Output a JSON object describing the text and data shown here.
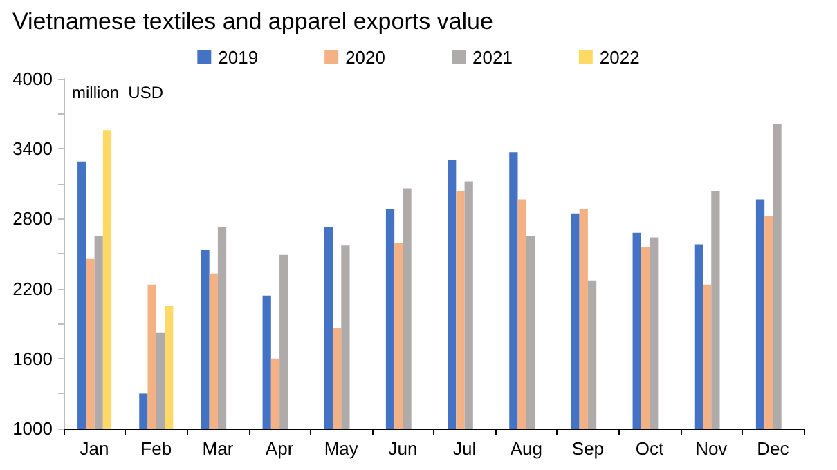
{
  "chart_data": {
    "type": "bar",
    "title": "Vietnamese textiles and apparel exports value",
    "ylabel": "million  USD",
    "categories": [
      "Jan",
      "Feb",
      "Mar",
      "Apr",
      "May",
      "Jun",
      "Jul",
      "Aug",
      "Sep",
      "Oct",
      "Nov",
      "Dec"
    ],
    "series": [
      {
        "name": "2019",
        "color": "#4472c4",
        "values": [
          3290,
          1300,
          2530,
          2140,
          2725,
          2880,
          3300,
          3370,
          2845,
          2680,
          2580,
          2965
        ]
      },
      {
        "name": "2020",
        "color": "#f4b183",
        "values": [
          2460,
          2235,
          2330,
          1600,
          1865,
          2595,
          3035,
          2965,
          2880,
          2560,
          2235,
          2820
        ]
      },
      {
        "name": "2021",
        "color": "#afabab",
        "values": [
          2650,
          1820,
          2725,
          2490,
          2570,
          3060,
          3120,
          2650,
          2270,
          2640,
          3035,
          3610
        ]
      },
      {
        "name": "2022",
        "color": "#ffd966",
        "values": [
          3560,
          2055,
          null,
          null,
          null,
          null,
          null,
          null,
          null,
          null,
          null,
          null
        ]
      }
    ],
    "ylim": [
      1000,
      4000
    ],
    "yticks": [
      1000,
      {
        "value": 1300,
        "label": null
      },
      1600,
      {
        "value": 1900,
        "label": null
      },
      2200,
      {
        "value": 2500,
        "label": null
      },
      2800,
      {
        "value": 3100,
        "label": null
      },
      3400,
      {
        "value": 3700,
        "label": null
      },
      4000
    ],
    "grid": false,
    "legend": "top"
  }
}
